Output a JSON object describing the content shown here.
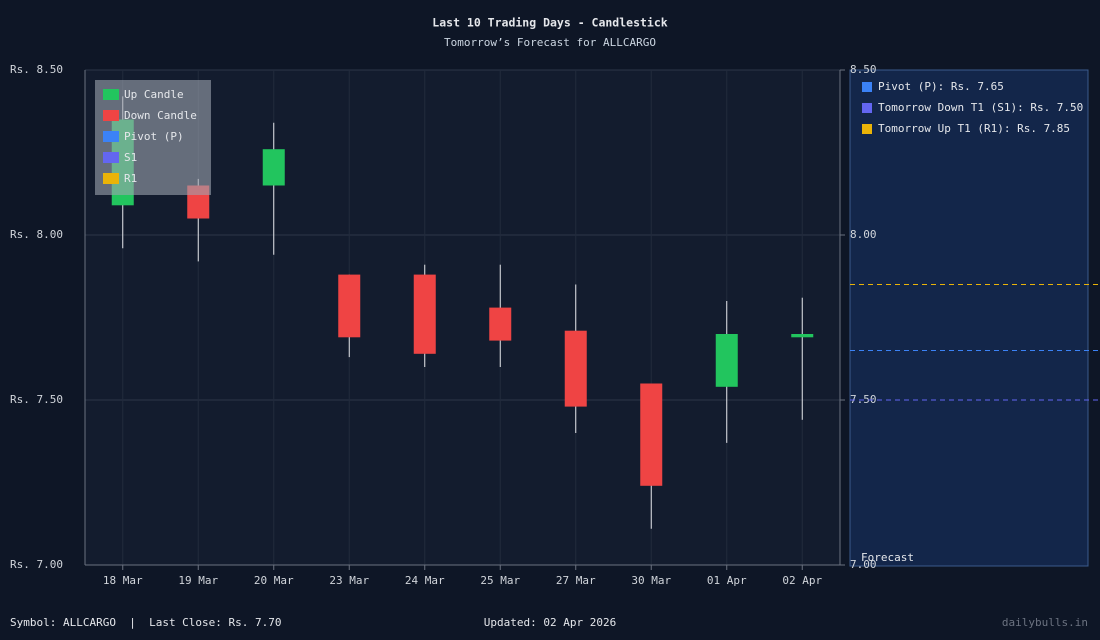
{
  "chart_data": {
    "type": "candlestick",
    "title": "Last 10 Trading Days - Candlestick",
    "subtitle": "Tomorrow’s Forecast for ALLCARGO",
    "categories": [
      "18 Mar",
      "19 Mar",
      "20 Mar",
      "23 Mar",
      "24 Mar",
      "25 Mar",
      "27 Mar",
      "30 Mar",
      "01 Apr",
      "02 Apr"
    ],
    "open": [
      8.09,
      8.15,
      8.15,
      7.88,
      7.88,
      7.78,
      7.71,
      7.55,
      7.54,
      7.69
    ],
    "high": [
      8.42,
      8.17,
      8.34,
      7.88,
      7.91,
      7.91,
      7.85,
      7.55,
      7.8,
      7.81
    ],
    "low": [
      7.96,
      7.92,
      7.94,
      7.63,
      7.6,
      7.6,
      7.4,
      7.11,
      7.37,
      7.44
    ],
    "close": [
      8.35,
      8.05,
      8.26,
      7.69,
      7.64,
      7.68,
      7.48,
      7.24,
      7.7,
      7.7
    ],
    "up_color": "#22c55e",
    "down_color": "#ef4444",
    "ylim": [
      7.0,
      8.5
    ],
    "yticks": [
      {
        "value": 7.0,
        "label": "Rs. 7.00"
      },
      {
        "value": 7.5,
        "label": "Rs. 7.50"
      },
      {
        "value": 8.0,
        "label": "Rs. 8.00"
      },
      {
        "value": 8.5,
        "label": "Rs. 8.50"
      }
    ],
    "y2lim": [
      7.0,
      8.5
    ],
    "y2ticks": [
      {
        "value": 7.0,
        "label": "7.00"
      },
      {
        "value": 7.5,
        "label": "7.50"
      },
      {
        "value": 8.0,
        "label": "8.00"
      },
      {
        "value": 8.5,
        "label": "8.50"
      }
    ],
    "grid": true,
    "legend": [
      {
        "name": "Up Candle",
        "color": "#22c55e"
      },
      {
        "name": "Down Candle",
        "color": "#ef4444"
      },
      {
        "name": "Pivot (P)",
        "color": "#3b82f6"
      },
      {
        "name": "S1",
        "color": "#6366f1"
      },
      {
        "name": "R1",
        "color": "#eab308"
      }
    ],
    "forecast_label": "Forecast",
    "levels": [
      {
        "name": "Pivot (P)",
        "value": 7.65,
        "label": "Pivot (P): Rs. 7.65",
        "color": "#3b82f6"
      },
      {
        "name": "S1",
        "value": 7.5,
        "label": "Tomorrow Down T1 (S1): Rs. 7.50",
        "color": "#6366f1"
      },
      {
        "name": "R1",
        "value": 7.85,
        "label": "Tomorrow Up T1 (R1): Rs. 7.85",
        "color": "#eab308"
      }
    ]
  },
  "footer": {
    "symbol": "Symbol: ALLCARGO  |  Last Close: Rs. 7.70",
    "updated": "Updated: 02 Apr 2026",
    "brand": "dailybulls.in"
  }
}
